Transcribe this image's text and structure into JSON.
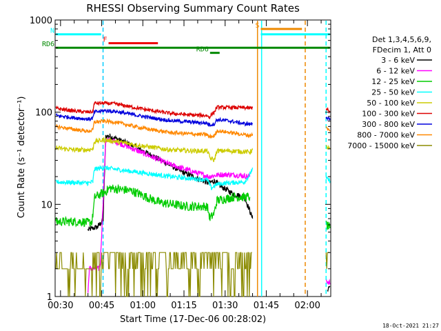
{
  "chart_data": {
    "type": "line",
    "title": "RHESSI Observing Summary Count Rates",
    "xlabel": "Start Time (17-Dec-06 00:28:02)",
    "ylabel": "Count Rate (s⁻¹ detector⁻¹)",
    "y_scale": "log",
    "ylim": [
      1,
      1000
    ],
    "xlim_minutes": [
      28.03,
      128.5
    ],
    "x_tick_labels": [
      "00:30",
      "00:45",
      "01:00",
      "01:15",
      "01:30",
      "01:45",
      "02:00"
    ],
    "x_tick_minutes": [
      30,
      45,
      60,
      75,
      90,
      105,
      120
    ],
    "y_tick_labels": [
      "1",
      "10",
      "100",
      "1000"
    ],
    "y_tick_values": [
      1,
      10,
      100,
      1000
    ],
    "legend_header": [
      "Det 1,3,4,5,6,9,",
      "FDecim 1, Att 0"
    ],
    "legend_position": "right",
    "series": [
      {
        "name": "3 - 6 keV",
        "color": "#000000",
        "noise": 0.03,
        "segments": [
          [
            [
              40,
              5.3
            ],
            [
              43.5,
              5.7
            ],
            [
              44.5,
              6.2
            ],
            [
              45,
              6.5
            ],
            [
              45.5,
              6.8
            ],
            [
              46.5,
              55
            ],
            [
              48,
              55
            ],
            [
              55,
              45
            ],
            [
              65,
              32
            ],
            [
              75,
              22
            ],
            [
              84,
              17
            ],
            [
              86,
              18
            ],
            [
              88,
              16
            ],
            [
              93,
              13
            ],
            [
              97,
              12
            ],
            [
              99,
              8.5
            ],
            [
              100,
              7
            ]
          ],
          [
            [
              127.3,
              1.2
            ],
            [
              128.2,
              1.3
            ]
          ]
        ]
      },
      {
        "name": "6 - 12 keV",
        "color": "#ff00ff",
        "noise": 0.03,
        "segments": [
          [
            [
              40,
              1.1
            ],
            [
              40.5,
              2
            ],
            [
              44,
              2
            ],
            [
              44.5,
              2.3
            ],
            [
              46.5,
              50
            ],
            [
              50,
              48
            ],
            [
              60,
              36
            ],
            [
              70,
              27
            ],
            [
              84,
              20
            ],
            [
              88,
              21
            ],
            [
              93,
              21
            ],
            [
              99,
              20
            ]
          ],
          [
            [
              126.8,
              1.5
            ],
            [
              128.2,
              1.4
            ]
          ]
        ]
      },
      {
        "name": "12 - 25 keV",
        "color": "#00cc00",
        "noise": 0.05,
        "segments": [
          [
            [
              28.3,
              6.5
            ],
            [
              38,
              6.5
            ],
            [
              40,
              6.3
            ],
            [
              41.5,
              6.5
            ],
            [
              42.5,
              12
            ],
            [
              46,
              13.5
            ],
            [
              48,
              15
            ],
            [
              56,
              14
            ],
            [
              66,
              10.5
            ],
            [
              76,
              9.5
            ],
            [
              83.5,
              9.5
            ],
            [
              84.5,
              7
            ],
            [
              86,
              8
            ],
            [
              87,
              11
            ],
            [
              93,
              12
            ],
            [
              99,
              12
            ]
          ],
          [
            [
              126.8,
              6
            ],
            [
              128.2,
              5.5
            ]
          ]
        ]
      },
      {
        "name": "25 - 50 keV",
        "color": "#00ffff",
        "noise": 0.025,
        "segments": [
          [
            [
              28.3,
              17.5
            ],
            [
              40,
              17
            ],
            [
              41.8,
              17.5
            ],
            [
              42.3,
              24
            ],
            [
              46,
              25
            ],
            [
              50,
              24
            ],
            [
              60,
              22
            ],
            [
              70,
              20
            ],
            [
              78,
              19
            ],
            [
              83.5,
              18.5
            ],
            [
              85,
              15
            ],
            [
              87,
              16.5
            ],
            [
              90,
              17
            ],
            [
              97,
              17.5
            ],
            [
              99,
              21
            ],
            [
              100,
              25
            ]
          ],
          [
            [
              126.8,
              19
            ],
            [
              128.2,
              18
            ]
          ]
        ]
      },
      {
        "name": "50 - 100 keV",
        "color": "#cccc00",
        "noise": 0.025,
        "segments": [
          [
            [
              28.3,
              41
            ],
            [
              35,
              39
            ],
            [
              40,
              39
            ],
            [
              41.8,
              40
            ],
            [
              42.3,
              48
            ],
            [
              46,
              50
            ],
            [
              50,
              48
            ],
            [
              60,
              43
            ],
            [
              70,
              39
            ],
            [
              78,
              38
            ],
            [
              83.5,
              38
            ],
            [
              84.5,
              32
            ],
            [
              86,
              30
            ],
            [
              87,
              38
            ],
            [
              92,
              38
            ],
            [
              99,
              37
            ],
            [
              100,
              39
            ]
          ],
          [
            [
              126.8,
              42
            ],
            [
              128.2,
              40
            ]
          ]
        ]
      },
      {
        "name": "100 - 300 keV",
        "color": "#dd0000",
        "noise": 0.02,
        "segments": [
          [
            [
              28.3,
              110
            ],
            [
              35,
              103
            ],
            [
              40,
              100
            ],
            [
              41.8,
              102
            ],
            [
              42.3,
              125
            ],
            [
              46,
              125
            ],
            [
              50,
              123
            ],
            [
              60,
              108
            ],
            [
              70,
              97
            ],
            [
              78,
              93
            ],
            [
              83.5,
              92
            ],
            [
              84,
              88
            ],
            [
              86,
              100
            ],
            [
              87,
              113
            ],
            [
              92,
              112
            ],
            [
              97,
              112
            ],
            [
              99,
              110
            ],
            [
              100,
              112
            ]
          ],
          [
            [
              126.8,
              110
            ],
            [
              128.2,
              100
            ]
          ]
        ]
      },
      {
        "name": "300 - 800 keV",
        "color": "#0000dd",
        "noise": 0.02,
        "segments": [
          [
            [
              28.3,
              92
            ],
            [
              35,
              87
            ],
            [
              40,
              84
            ],
            [
              41.8,
              86
            ],
            [
              42.3,
              100
            ],
            [
              46,
              104
            ],
            [
              50,
              102
            ],
            [
              60,
              90
            ],
            [
              70,
              81
            ],
            [
              78,
              78
            ],
            [
              83.5,
              76
            ],
            [
              84,
              73
            ],
            [
              86,
              74
            ],
            [
              87,
              83
            ],
            [
              92,
              80
            ],
            [
              97,
              75
            ],
            [
              99,
              74
            ],
            [
              100,
              76
            ]
          ],
          [
            [
              126.8,
              90
            ],
            [
              128.2,
              82
            ]
          ]
        ]
      },
      {
        "name": "800 - 7000 keV",
        "color": "#ff8800",
        "noise": 0.02,
        "segments": [
          [
            [
              28.3,
              70
            ],
            [
              35,
              65
            ],
            [
              40,
              62
            ],
            [
              41.8,
              64
            ],
            [
              42.3,
              78
            ],
            [
              46,
              80
            ],
            [
              50,
              78
            ],
            [
              60,
              67
            ],
            [
              70,
              60
            ],
            [
              78,
              58
            ],
            [
              83.5,
              57
            ],
            [
              84,
              54
            ],
            [
              86,
              55
            ],
            [
              87,
              63
            ],
            [
              92,
              60
            ],
            [
              97,
              57
            ],
            [
              99,
              56
            ],
            [
              100,
              58
            ]
          ],
          [
            [
              126.8,
              68
            ],
            [
              128.2,
              62
            ]
          ]
        ]
      },
      {
        "name": "7000 - 15000 keV",
        "color": "#8b8b00",
        "noise": 0,
        "segments": [
          [
            [
              28.3,
              2
            ],
            [
              40,
              2
            ],
            [
              41.5,
              2
            ],
            [
              41.8,
              3
            ],
            [
              100,
              3
            ]
          ],
          [
            [
              126.8,
              3
            ],
            [
              128.2,
              3
            ]
          ]
        ]
      }
    ],
    "annotations": [
      {
        "text": "N",
        "kind": "flag",
        "color": "#00ffff",
        "y_level": 700,
        "x_start": 28.3,
        "x_end": 44.8
      },
      {
        "text": "F",
        "kind": "flag",
        "color": "#ee0000",
        "y_level": 560,
        "x_start": 47.5,
        "x_end": 65.5
      },
      {
        "text": "RD6",
        "kind": "flag",
        "color": "#008800",
        "y_level": 500,
        "x_start": 28.3,
        "x_end": 128.2
      },
      {
        "text": "RD6",
        "kind": "flag",
        "color": "#008800",
        "y_level": 440,
        "x_start": 84.5,
        "x_end": 88
      },
      {
        "text": "S",
        "kind": "flag",
        "color": "#ee8800",
        "y_level": 800,
        "x_start": 103,
        "x_end": 118
      },
      {
        "text": "",
        "kind": "flag",
        "color": "#00ffff",
        "y_level": 700,
        "x_start": 103,
        "x_end": 128.2
      }
    ],
    "vertical_markers": [
      {
        "minute": 45.5,
        "color": "#00ccff",
        "style": "dashed"
      },
      {
        "minute": 101.8,
        "color": "#ee8800",
        "style": "solid"
      },
      {
        "minute": 103.3,
        "color": "#00ffff",
        "style": "solid"
      },
      {
        "minute": 119.2,
        "color": "#ee8800",
        "style": "dashed"
      },
      {
        "minute": 126.8,
        "color": "#00ffff",
        "style": "dashed"
      }
    ],
    "timestamp": "18-Oct-2021 21:27"
  }
}
